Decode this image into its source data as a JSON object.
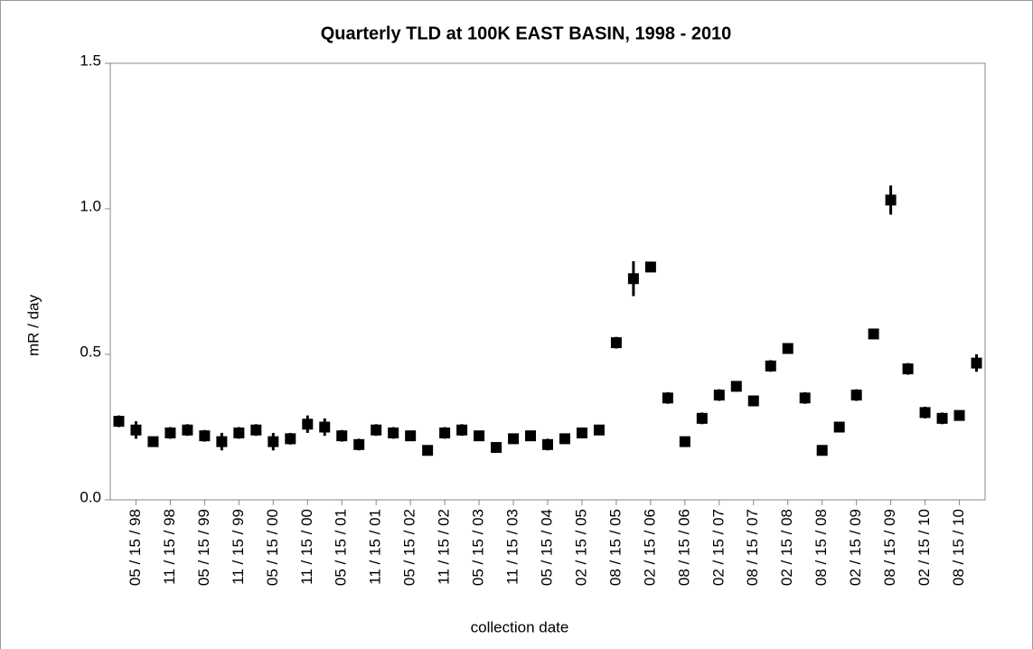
{
  "chart_data": {
    "type": "scatter",
    "title": "Quarterly TLD at 100K EAST BASIN, 1998 - 2010",
    "xlabel": "collection date",
    "ylabel": "mR / day",
    "categories": [
      null,
      "05 / 15 / 98",
      null,
      "11 / 15 / 98",
      null,
      "05 / 15 / 99",
      null,
      "11 / 15 / 99",
      null,
      "05 / 15 / 00",
      null,
      "11 / 15 / 00",
      null,
      "05 / 15 / 01",
      null,
      "11 / 15 / 01",
      null,
      "05 / 15 / 02",
      null,
      "11 / 15 / 02",
      null,
      "05 / 15 / 03",
      null,
      "11 / 15 / 03",
      null,
      "05 / 15 / 04",
      null,
      "02 / 15 / 05",
      null,
      "08 / 15 / 05",
      null,
      "02 / 15 / 06",
      null,
      "08 / 15 / 06",
      null,
      "02 / 15 / 07",
      null,
      "08 / 15 / 07",
      null,
      "02 / 15 / 08",
      null,
      "08 / 15 / 08",
      null,
      "02 / 15 / 09",
      null,
      "08 / 15 / 09",
      null,
      "02 / 15 / 10",
      null,
      "08 / 15 / 10",
      null
    ],
    "values": [
      0.27,
      0.24,
      0.2,
      0.23,
      0.24,
      0.22,
      0.2,
      0.23,
      0.24,
      0.2,
      0.21,
      0.26,
      0.25,
      0.22,
      0.19,
      0.24,
      0.23,
      0.22,
      0.17,
      0.23,
      0.24,
      0.22,
      0.18,
      0.21,
      0.22,
      0.19,
      0.21,
      0.23,
      0.24,
      0.54,
      0.76,
      0.8,
      0.35,
      0.2,
      0.28,
      0.36,
      0.39,
      0.34,
      0.46,
      0.52,
      0.35,
      0.17,
      0.25,
      0.36,
      0.57,
      1.03,
      0.45,
      0.3,
      0.28,
      0.29,
      0.47
    ],
    "errors": [
      0.02,
      0.03,
      0.01,
      0.02,
      0.02,
      0.02,
      0.03,
      0.02,
      0.02,
      0.03,
      0.02,
      0.03,
      0.03,
      0.02,
      0.02,
      0.02,
      0.02,
      0.01,
      0.01,
      0.02,
      0.02,
      0.01,
      0.01,
      0.01,
      0.01,
      0.02,
      0.01,
      0.01,
      0.01,
      0.02,
      0.06,
      0.01,
      0.02,
      0.01,
      0.02,
      0.02,
      0.01,
      0.01,
      0.02,
      0.01,
      0.02,
      0.01,
      0.01,
      0.02,
      0.01,
      0.05,
      0.02,
      0.02,
      0.02,
      0.01,
      0.03
    ],
    "color": "#000000",
    "ylim": [
      0,
      1.5
    ],
    "yticks": [
      {
        "value": 0,
        "label": "0.0"
      },
      0.5,
      {
        "value": 1,
        "label": "1.0"
      },
      1.5
    ]
  }
}
